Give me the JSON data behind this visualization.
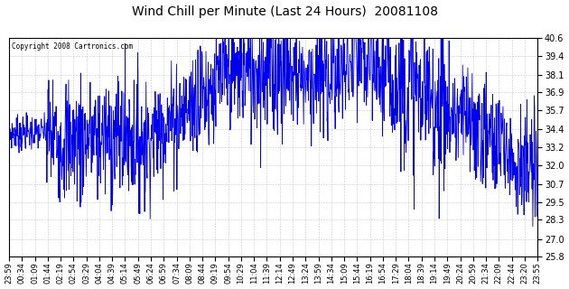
{
  "title": "Wind Chill per Minute (Last 24 Hours)  20081108",
  "copyright": "Copyright 2008 Cartronics.com",
  "line_color": "#0000ee",
  "background_color": "#ffffff",
  "grid_color": "#bbbbbb",
  "ylim": [
    25.8,
    40.6
  ],
  "yticks": [
    25.8,
    27.0,
    28.3,
    29.5,
    30.7,
    32.0,
    33.2,
    34.4,
    35.7,
    36.9,
    38.1,
    39.4,
    40.6
  ],
  "xtick_labels": [
    "23:59",
    "00:34",
    "01:09",
    "01:44",
    "02:19",
    "02:54",
    "03:29",
    "04:04",
    "04:39",
    "05:14",
    "05:49",
    "06:24",
    "06:59",
    "07:34",
    "08:09",
    "08:44",
    "09:19",
    "09:54",
    "10:29",
    "11:04",
    "11:39",
    "12:14",
    "12:49",
    "13:24",
    "13:59",
    "14:34",
    "15:09",
    "15:44",
    "16:19",
    "16:54",
    "17:29",
    "18:04",
    "18:39",
    "19:14",
    "19:49",
    "20:24",
    "20:59",
    "21:34",
    "22:09",
    "22:44",
    "23:20",
    "23:55"
  ],
  "seed": 7,
  "n_points": 1440
}
